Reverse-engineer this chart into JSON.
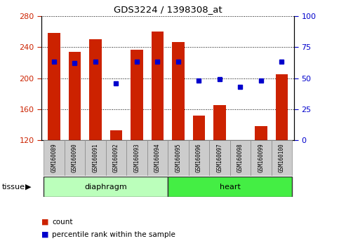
{
  "title": "GDS3224 / 1398308_at",
  "samples": [
    "GSM160089",
    "GSM160090",
    "GSM160091",
    "GSM160092",
    "GSM160093",
    "GSM160094",
    "GSM160095",
    "GSM160096",
    "GSM160097",
    "GSM160098",
    "GSM160099",
    "GSM160100"
  ],
  "count_values": [
    258,
    234,
    250,
    133,
    237,
    260,
    247,
    152,
    165,
    120,
    138,
    205
  ],
  "percentile_values": [
    63,
    62,
    63,
    46,
    63,
    63,
    63,
    48,
    49,
    43,
    48,
    63
  ],
  "y_min": 120,
  "y_max": 280,
  "y_ticks": [
    120,
    160,
    200,
    240,
    280
  ],
  "y2_ticks": [
    0,
    25,
    50,
    75,
    100
  ],
  "bar_color": "#cc2200",
  "dot_color": "#0000cc",
  "groups": [
    {
      "label": "diaphragm",
      "start": 0,
      "end": 6,
      "color": "#bbffbb"
    },
    {
      "label": "heart",
      "start": 6,
      "end": 12,
      "color": "#44ee44"
    }
  ],
  "tissue_label": "tissue",
  "legend_count": "count",
  "legend_pct": "percentile rank within the sample",
  "bg_color": "#ffffff",
  "tick_label_bg": "#cccccc",
  "grid_color": "#000000"
}
